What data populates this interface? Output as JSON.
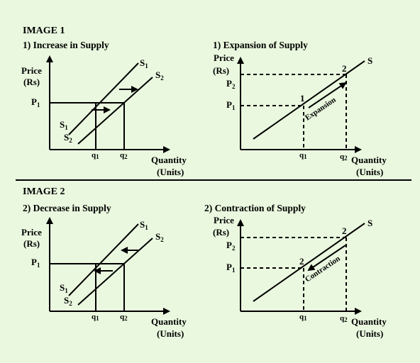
{
  "image1": {
    "heading": "IMAGE 1",
    "left": {
      "title": "1) Increase in Supply",
      "y_label_1": "Price",
      "y_label_2": "(Rs)",
      "p1": "P",
      "p1_sub": "1",
      "s1_top": "S",
      "s1_top_sub": "1",
      "s2_top": "S",
      "s2_top_sub": "2",
      "s1_bottom": "S",
      "s1_bottom_sub": "1",
      "s2_bottom": "S",
      "s2_bottom_sub": "2",
      "q1": "q",
      "q1_sub": "1",
      "q2": "q",
      "q2_sub": "2",
      "x_label_1": "Quantity",
      "x_label_2": "(Units)"
    },
    "right": {
      "title": "1) Expansion of Supply",
      "y_label_1": "Price",
      "y_label_2": "(Rs)",
      "p2": "P",
      "p2_sub": "2",
      "p1": "P",
      "p1_sub": "1",
      "curve": "S",
      "point_1": "1",
      "point_2": "2",
      "annotation": "Expansion",
      "q1": "q",
      "q1_sub": "1",
      "q2": "q",
      "q2_sub": "2",
      "x_label_1": "Quantity",
      "x_label_2": "(Units)"
    }
  },
  "image2": {
    "heading": "IMAGE 2",
    "left": {
      "title": "2) Decrease in Supply",
      "y_label_1": "Price",
      "y_label_2": "(Rs)",
      "p1": "P",
      "p1_sub": "1",
      "s1_top": "S",
      "s1_top_sub": "1",
      "s2_top": "S",
      "s2_top_sub": "2",
      "s1_bottom": "S",
      "s1_bottom_sub": "1",
      "s2_bottom": "S",
      "s2_bottom_sub": "2",
      "q1": "q",
      "q1_sub": "1",
      "q2": "q",
      "q2_sub": "2",
      "x_label_1": "Quantity",
      "x_label_2": "(Units)"
    },
    "right": {
      "title": "2) Contraction of Supply",
      "y_label_1": "Price",
      "y_label_2": "(Rs)",
      "p2": "P",
      "p2_sub": "2",
      "p1": "P",
      "p1_sub": "1",
      "curve": "S",
      "point_upper": "2",
      "point_lower": "2",
      "annotation": "Contraction",
      "q1": "q",
      "q1_sub": "1",
      "q2": "q",
      "q2_sub": "2",
      "x_label_1": "Quantity",
      "x_label_2": "(Units)"
    }
  },
  "colors": {
    "background": "#eaf8df",
    "ink": "#000000"
  }
}
